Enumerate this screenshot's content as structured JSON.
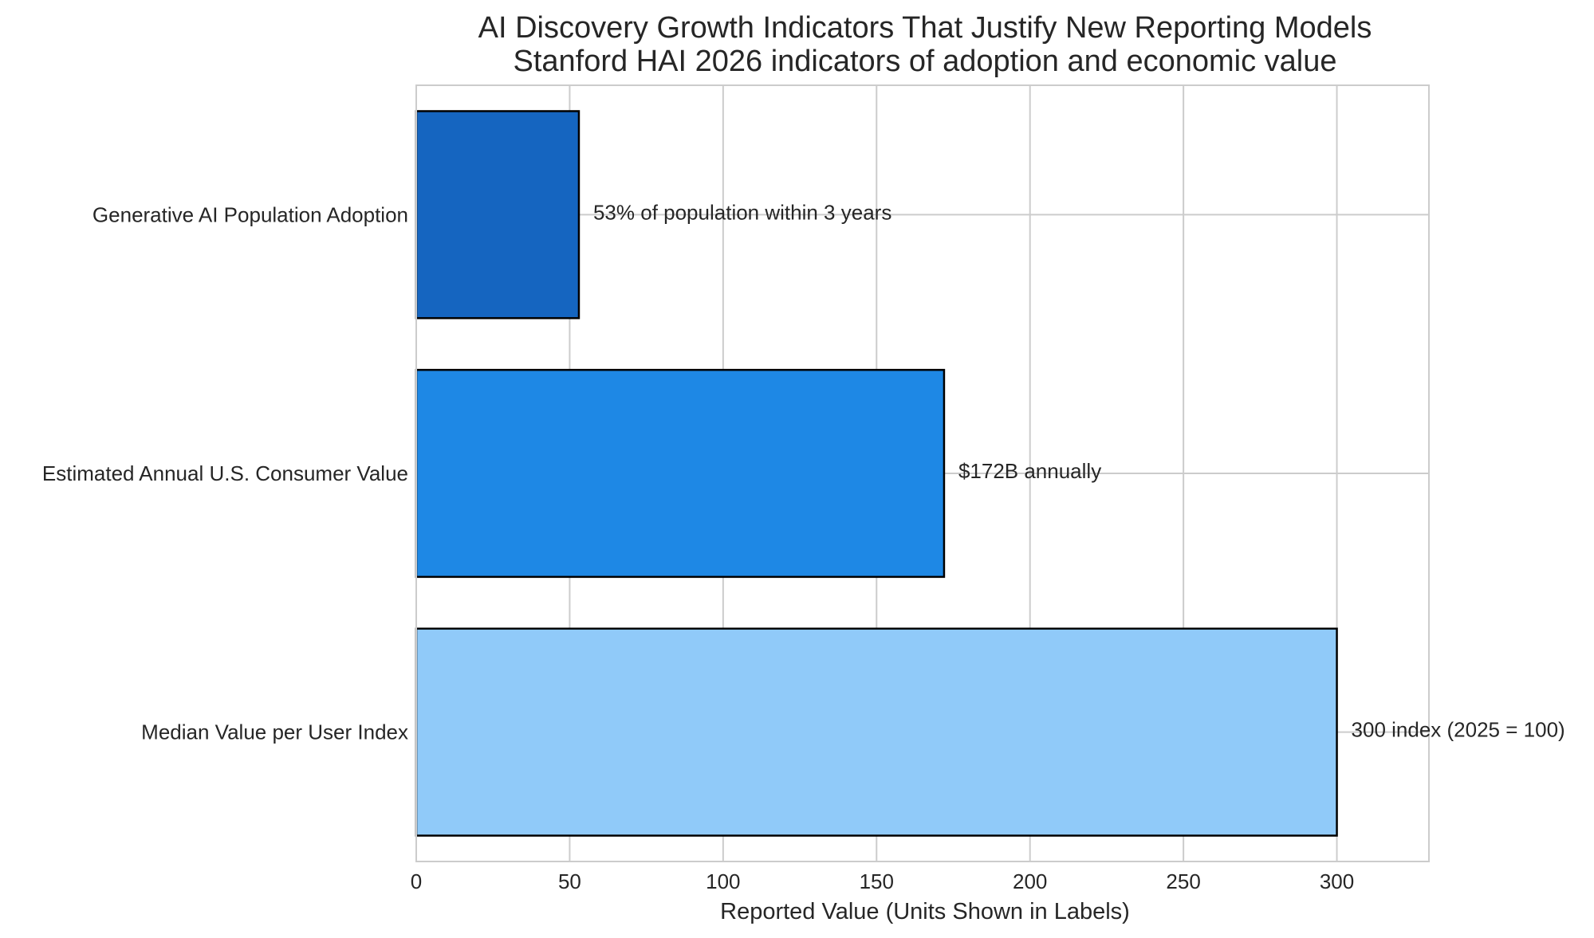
{
  "chart_data": {
    "type": "bar",
    "orientation": "horizontal",
    "title": "AI Discovery Growth Indicators That Justify New Reporting Models",
    "subtitle": "Stanford HAI 2026 indicators of adoption and economic value",
    "xlabel": "Reported Value (Units Shown in Labels)",
    "ylabel": "",
    "xlim": [
      0,
      330
    ],
    "xticks": [
      0,
      50,
      100,
      150,
      200,
      250,
      300
    ],
    "grid": true,
    "categories": [
      "Generative AI Population Adoption",
      "Estimated Annual U.S. Consumer Value",
      "Median Value per User Index"
    ],
    "values": [
      53,
      172,
      300
    ],
    "data_labels": [
      "53% of population within 3 years",
      "$172B annually",
      "300 index (2025 = 100)"
    ],
    "colors": [
      "#1565c0",
      "#1e88e5",
      "#90caf9"
    ],
    "edge_color": "#000000",
    "grid_color": "#cccccc"
  }
}
